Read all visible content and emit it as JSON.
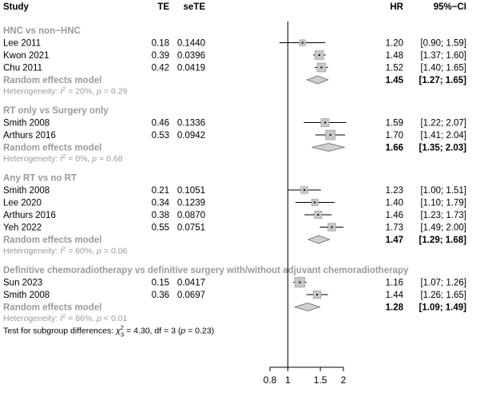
{
  "chart_data": {
    "type": "forest",
    "columns": {
      "study": "Study",
      "te": "TE",
      "sete": "seTE",
      "hr": "HR",
      "ci": "95%−CI"
    },
    "x_axis": {
      "scale": "log",
      "ticks": [
        "0.8",
        "1",
        "1.5",
        "2"
      ],
      "reference_line": 1
    },
    "subgroups": [
      {
        "title": "HNC vs non−HNC",
        "studies": [
          {
            "name": "Lee 2011",
            "te": "0.18",
            "sete": "0.1440",
            "hr": 1.2,
            "lo": 0.9,
            "hi": 1.59,
            "hr_text": "1.20",
            "ci_text": "[0.90; 1.59]",
            "weight": 0.2
          },
          {
            "name": "Kwon 2021",
            "te": "0.39",
            "sete": "0.0396",
            "hr": 1.48,
            "lo": 1.37,
            "hi": 1.6,
            "hr_text": "1.48",
            "ci_text": "[1.37; 1.60]",
            "weight": 0.5
          },
          {
            "name": "Chu 2011",
            "te": "0.42",
            "sete": "0.0419",
            "hr": 1.52,
            "lo": 1.4,
            "hi": 1.65,
            "hr_text": "1.52",
            "ci_text": "[1.40; 1.65]",
            "weight": 0.5
          }
        ],
        "pooled": {
          "label": "Random effects model",
          "hr": 1.45,
          "lo": 1.27,
          "hi": 1.65,
          "hr_text": "1.45",
          "ci_text": "[1.27; 1.65]"
        },
        "heterogeneity": {
          "prefix": "Heterogeneity: ",
          "i2_value": " = 20%, ",
          "p_value": " = 0.29"
        }
      },
      {
        "title": "RT only vs Surgery only",
        "studies": [
          {
            "name": "Smith 2008",
            "te": "0.46",
            "sete": "0.1336",
            "hr": 1.59,
            "lo": 1.22,
            "hi": 2.07,
            "hr_text": "1.59",
            "ci_text": "[1.22; 2.07]",
            "weight": 0.42
          },
          {
            "name": "Arthurs 2016",
            "te": "0.53",
            "sete": "0.0942",
            "hr": 1.7,
            "lo": 1.41,
            "hi": 2.04,
            "hr_text": "1.70",
            "ci_text": "[1.41; 2.04]",
            "weight": 0.58
          }
        ],
        "pooled": {
          "label": "Random effects model",
          "hr": 1.66,
          "lo": 1.35,
          "hi": 2.03,
          "hr_text": "1.66",
          "ci_text": "[1.35; 2.03]"
        },
        "heterogeneity": {
          "prefix": "Heterogeneity: ",
          "i2_value": " = 0%, ",
          "p_value": " = 0.68"
        }
      },
      {
        "title": "Any RT vs no RT",
        "studies": [
          {
            "name": "Smith 2008",
            "te": "0.21",
            "sete": "0.1051",
            "hr": 1.23,
            "lo": 1.0,
            "hi": 1.51,
            "hr_text": "1.23",
            "ci_text": "[1.00; 1.51]",
            "weight": 0.3
          },
          {
            "name": "Lee 2020",
            "te": "0.34",
            "sete": "0.1239",
            "hr": 1.4,
            "lo": 1.1,
            "hi": 1.79,
            "hr_text": "1.40",
            "ci_text": "[1.10; 1.79]",
            "weight": 0.25
          },
          {
            "name": "Arthurs 2016",
            "te": "0.38",
            "sete": "0.0870",
            "hr": 1.46,
            "lo": 1.23,
            "hi": 1.73,
            "hr_text": "1.46",
            "ci_text": "[1.23; 1.73]",
            "weight": 0.35
          },
          {
            "name": "Yeh 2022",
            "te": "0.55",
            "sete": "0.0751",
            "hr": 1.73,
            "lo": 1.49,
            "hi": 2.0,
            "hr_text": "1.73",
            "ci_text": "[1.49; 2.00]",
            "weight": 0.38
          }
        ],
        "pooled": {
          "label": "Random effects model",
          "hr": 1.47,
          "lo": 1.29,
          "hi": 1.68,
          "hr_text": "1.47",
          "ci_text": "[1.29; 1.68]"
        },
        "heterogeneity": {
          "prefix": "Heterogeneity: ",
          "i2_value": " = 60%, ",
          "p_value": " = 0.06"
        }
      },
      {
        "title": "Definitive chemoradiotherapy vs definitive surgery with/without adjuvant chemoradiotherapy",
        "studies": [
          {
            "name": "Sun 2023",
            "te": "0.15",
            "sete": "0.0417",
            "hr": 1.16,
            "lo": 1.07,
            "hi": 1.26,
            "hr_text": "1.16",
            "ci_text": "[1.07; 1.26]",
            "weight": 0.62
          },
          {
            "name": "Smith 2008",
            "te": "0.36",
            "sete": "0.0697",
            "hr": 1.44,
            "lo": 1.26,
            "hi": 1.65,
            "hr_text": "1.44",
            "ci_text": "[1.26; 1.65]",
            "weight": 0.38
          }
        ],
        "pooled": {
          "label": "Random effects model",
          "hr": 1.28,
          "lo": 1.09,
          "hi": 1.49,
          "hr_text": "1.28",
          "ci_text": "[1.09; 1.49]"
        },
        "heterogeneity": {
          "prefix": "Heterogeneity: ",
          "i2_value": " = 86%, ",
          "p_value": " < 0.01"
        }
      }
    ],
    "subgroup_test": {
      "prefix": "Test for subgroup differences: ",
      "chi_sub": "3",
      "chi_sup": "2",
      "rest": " = 4.30, df = 3 (",
      "p": " = 0.23)"
    }
  },
  "colors": {
    "text": "#000000",
    "subgroup_gray": "#9a9a9a",
    "square_fill": "#c8c8c8",
    "square_stroke": "#909090",
    "diamond_fill": "#d0d0d0",
    "diamond_stroke": "#606060",
    "line": "#000000"
  }
}
